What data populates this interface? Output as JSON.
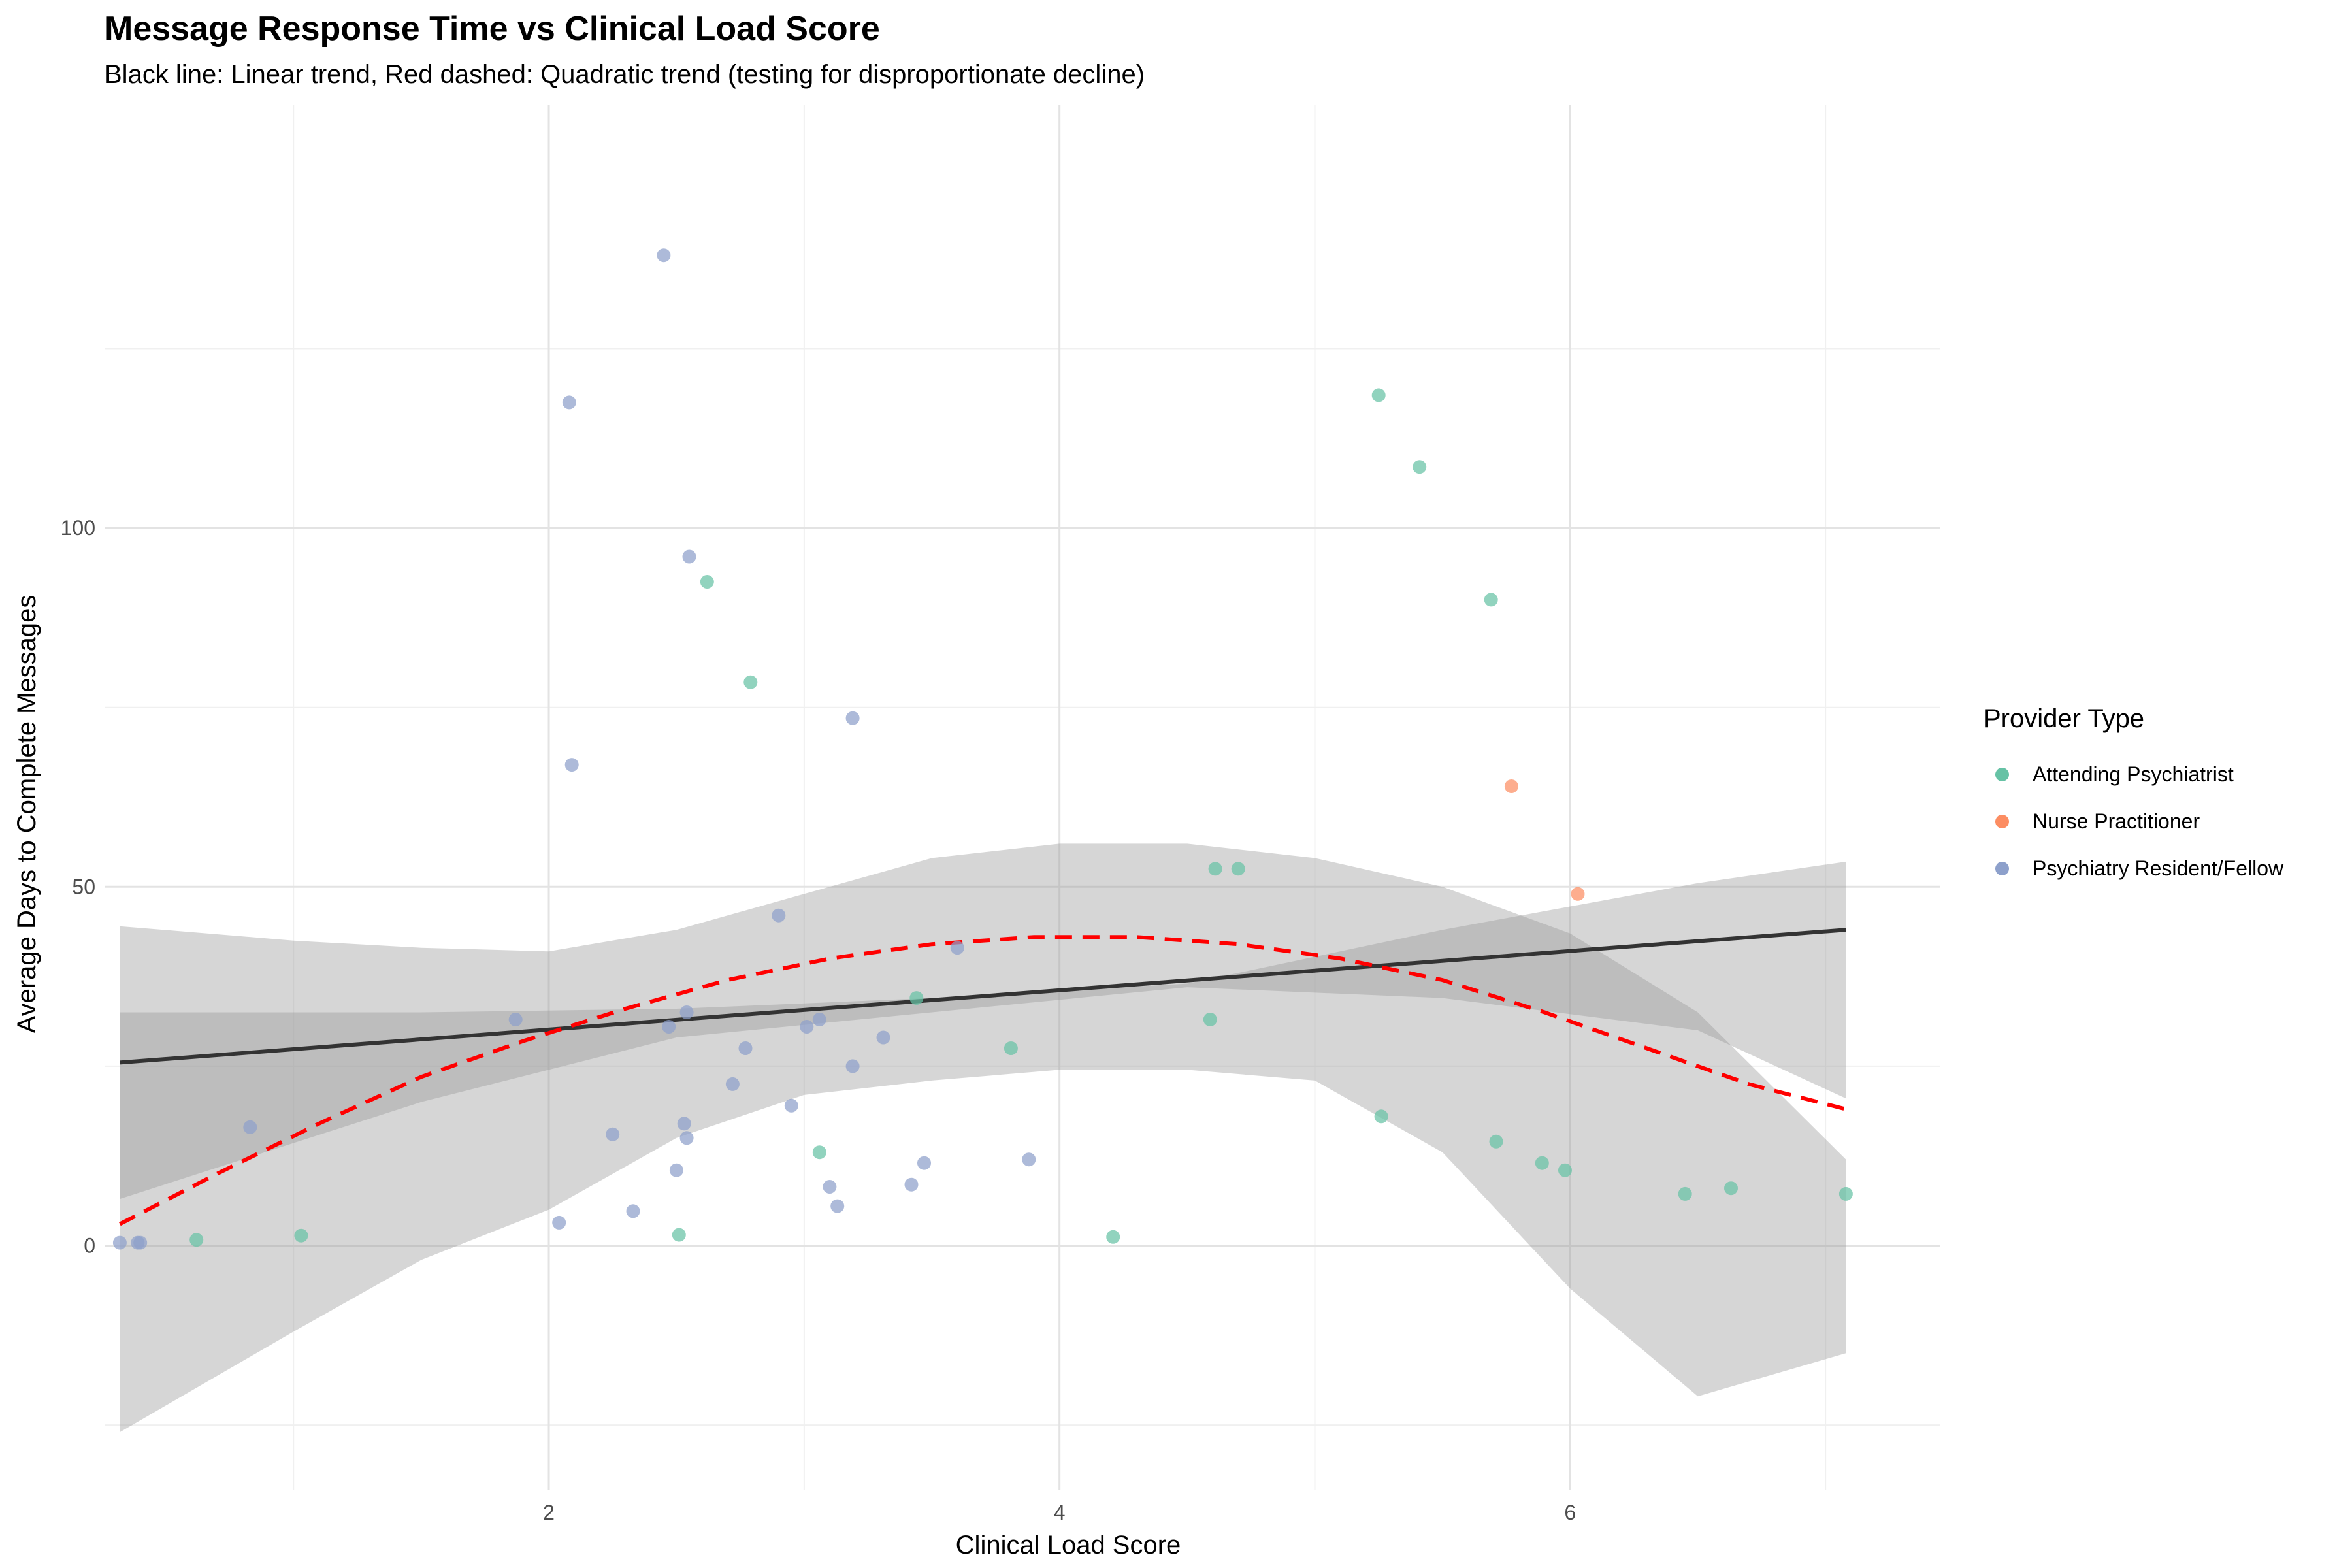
{
  "chart_data": {
    "type": "scatter",
    "title": "Message Response Time vs Clinical Load Score",
    "subtitle": "Black line: Linear trend, Red dashed: Quadratic trend (testing for disproportionate decline)",
    "xlabel": "Clinical Load Score",
    "ylabel": "Average Days to Complete Messages",
    "xlim": [
      0.26,
      7.45
    ],
    "ylim": [
      -34,
      159
    ],
    "x_ticks": [
      2,
      4,
      6
    ],
    "x_tick_labels": [
      "2",
      "4",
      "6"
    ],
    "y_ticks": [
      0,
      50,
      100
    ],
    "y_tick_labels": [
      "0",
      "50",
      "100"
    ],
    "grid": true,
    "legend": {
      "title": "Provider Type",
      "placement": "right",
      "entries": [
        "Attending Psychiatrist",
        "Nurse Practitioner",
        "Psychiatry Resident/Fellow"
      ]
    },
    "series": [
      {
        "name": "Attending Psychiatrist",
        "color": "#66c2a5",
        "points": [
          {
            "x": 0.62,
            "y": 0.8
          },
          {
            "x": 1.03,
            "y": 1.4
          },
          {
            "x": 2.51,
            "y": 1.5
          },
          {
            "x": 2.62,
            "y": 92.5
          },
          {
            "x": 2.79,
            "y": 78.5
          },
          {
            "x": 3.06,
            "y": 13.0
          },
          {
            "x": 3.44,
            "y": 34.5
          },
          {
            "x": 3.81,
            "y": 27.5
          },
          {
            "x": 4.21,
            "y": 1.2
          },
          {
            "x": 4.59,
            "y": 31.5
          },
          {
            "x": 4.61,
            "y": 52.5
          },
          {
            "x": 4.7,
            "y": 52.5
          },
          {
            "x": 5.25,
            "y": 118.5
          },
          {
            "x": 5.26,
            "y": 18.0
          },
          {
            "x": 5.41,
            "y": 108.5
          },
          {
            "x": 5.69,
            "y": 90.0
          },
          {
            "x": 5.71,
            "y": 14.5
          },
          {
            "x": 5.89,
            "y": 11.5
          },
          {
            "x": 5.98,
            "y": 10.5
          },
          {
            "x": 6.45,
            "y": 7.2
          },
          {
            "x": 6.63,
            "y": 8.0
          },
          {
            "x": 7.08,
            "y": 7.2
          }
        ]
      },
      {
        "name": "Nurse Practitioner",
        "color": "#fc8d62",
        "points": [
          {
            "x": 5.77,
            "y": 64.0
          },
          {
            "x": 6.03,
            "y": 49.0
          }
        ]
      },
      {
        "name": "Psychiatry Resident/Fellow",
        "color": "#8da0cb",
        "points": [
          {
            "x": 0.32,
            "y": 0.4
          },
          {
            "x": 0.39,
            "y": 0.4
          },
          {
            "x": 0.4,
            "y": 0.4
          },
          {
            "x": 0.83,
            "y": 16.5
          },
          {
            "x": 1.87,
            "y": 31.5
          },
          {
            "x": 2.04,
            "y": 3.2
          },
          {
            "x": 2.08,
            "y": 117.5
          },
          {
            "x": 2.09,
            "y": 67.0
          },
          {
            "x": 2.25,
            "y": 15.5
          },
          {
            "x": 2.33,
            "y": 4.8
          },
          {
            "x": 2.45,
            "y": 138.0
          },
          {
            "x": 2.47,
            "y": 30.5
          },
          {
            "x": 2.5,
            "y": 10.5
          },
          {
            "x": 2.53,
            "y": 17.0
          },
          {
            "x": 2.54,
            "y": 15.0
          },
          {
            "x": 2.54,
            "y": 32.5
          },
          {
            "x": 2.55,
            "y": 96.0
          },
          {
            "x": 2.72,
            "y": 22.5
          },
          {
            "x": 2.77,
            "y": 27.5
          },
          {
            "x": 2.9,
            "y": 46.0
          },
          {
            "x": 2.95,
            "y": 19.5
          },
          {
            "x": 3.01,
            "y": 30.5
          },
          {
            "x": 3.06,
            "y": 31.5
          },
          {
            "x": 3.1,
            "y": 8.2
          },
          {
            "x": 3.13,
            "y": 5.5
          },
          {
            "x": 3.19,
            "y": 73.5
          },
          {
            "x": 3.19,
            "y": 25.0
          },
          {
            "x": 3.31,
            "y": 29.0
          },
          {
            "x": 3.42,
            "y": 8.5
          },
          {
            "x": 3.47,
            "y": 11.5
          },
          {
            "x": 3.6,
            "y": 41.5
          },
          {
            "x": 3.88,
            "y": 12.0
          }
        ]
      }
    ],
    "linear_trend": {
      "label": "Linear trend",
      "color": "#333333",
      "x": [
        0.32,
        7.08
      ],
      "y": [
        25.5,
        44.0
      ],
      "ci_band": {
        "x": [
          0.32,
          1.5,
          2.5,
          3.5,
          4.5,
          5.5,
          6.5,
          7.08
        ],
        "upper": [
          32.5,
          32.5,
          33.0,
          34.5,
          36.5,
          44.0,
          50.5,
          53.5
        ],
        "lower": [
          6.5,
          20.0,
          29.0,
          32.5,
          36.0,
          34.5,
          30.0,
          20.5
        ]
      }
    },
    "quadratic_trend": {
      "label": "Quadratic trend",
      "color": "#ff0000",
      "dashed": true,
      "x": [
        0.32,
        0.7,
        1.1,
        1.5,
        1.9,
        2.3,
        2.7,
        3.1,
        3.5,
        3.9,
        4.3,
        4.7,
        5.1,
        5.5,
        5.9,
        6.3,
        6.7,
        7.08
      ],
      "y": [
        3.0,
        10.0,
        17.0,
        23.5,
        28.5,
        33.0,
        37.0,
        40.0,
        42.0,
        43.0,
        43.0,
        42.0,
        40.0,
        37.0,
        32.5,
        27.5,
        22.5,
        19.0
      ],
      "ci_band": {
        "x": [
          0.32,
          1.0,
          1.5,
          2.0,
          2.5,
          3.0,
          3.5,
          4.0,
          4.5,
          5.0,
          5.5,
          6.0,
          6.5,
          7.08
        ],
        "upper": [
          44.5,
          42.5,
          41.5,
          41.0,
          44.0,
          49.0,
          54.0,
          56.0,
          56.0,
          54.0,
          50.0,
          43.5,
          32.5,
          12.0
        ],
        "lower": [
          -26.0,
          -12.0,
          -2.0,
          5.0,
          15.0,
          21.0,
          23.0,
          24.5,
          24.5,
          23.0,
          13.0,
          -6.0,
          -21.0,
          -15.0
        ]
      }
    }
  }
}
